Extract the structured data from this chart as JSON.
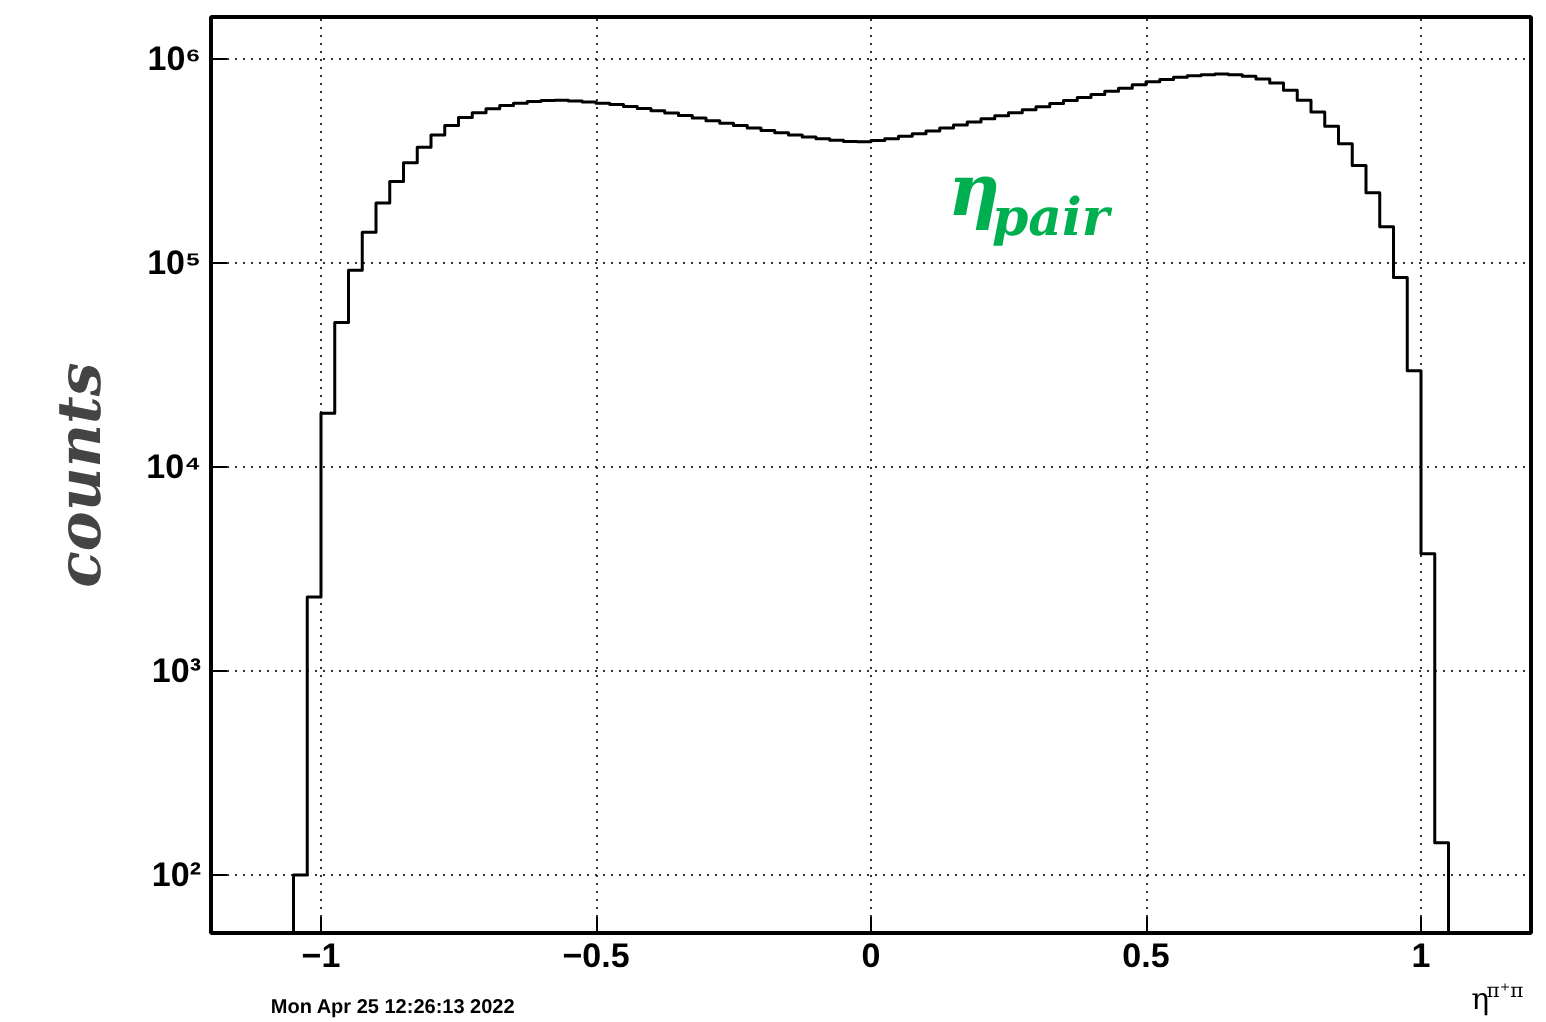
{
  "chart_data": {
    "type": "histogram",
    "xlabel": "η$^{π⁺π}$",
    "ylabel": "counts",
    "annotations": [
      "η$_{pair}$",
      "Mon Apr 25 12:26:13 2022"
    ],
    "bins": [
      -1.05,
      -1.025,
      -1.0,
      -0.975,
      -0.95,
      -0.925,
      -0.9,
      -0.875,
      -0.85,
      -0.825,
      -0.8,
      -0.775,
      -0.75,
      -0.725,
      -0.7,
      -0.675,
      -0.65,
      -0.625,
      -0.6,
      -0.575,
      -0.55,
      -0.525,
      -0.5,
      -0.475,
      -0.45,
      -0.425,
      -0.4,
      -0.375,
      -0.35,
      -0.325,
      -0.3,
      -0.275,
      -0.25,
      -0.225,
      -0.2,
      -0.175,
      -0.15,
      -0.125,
      -0.1,
      -0.075,
      -0.05,
      -0.025,
      0.0,
      0.025,
      0.05,
      0.075,
      0.1,
      0.125,
      0.15,
      0.175,
      0.2,
      0.225,
      0.25,
      0.275,
      0.3,
      0.325,
      0.35,
      0.375,
      0.4,
      0.425,
      0.45,
      0.475,
      0.5,
      0.525,
      0.55,
      0.575,
      0.6,
      0.625,
      0.65,
      0.675,
      0.7,
      0.725,
      0.75,
      0.775,
      0.8,
      0.825,
      0.85,
      0.875,
      0.9,
      0.925,
      0.95,
      0.975,
      1.0,
      1.025,
      1.05
    ],
    "values": [
      100,
      2300,
      18300,
      51000,
      92000,
      141000,
      196000,
      250000,
      309000,
      368000,
      423000,
      470000,
      515000,
      543000,
      569000,
      589000,
      605000,
      617000,
      624000,
      625000,
      621000,
      614000,
      605000,
      596000,
      583000,
      570000,
      556000,
      541000,
      526000,
      512000,
      497000,
      483000,
      470000,
      457000,
      445000,
      434000,
      423000,
      413000,
      405000,
      398000,
      393000,
      392000,
      397000,
      405000,
      417000,
      429000,
      442000,
      457000,
      473000,
      490000,
      507000,
      525000,
      543000,
      562000,
      582000,
      603000,
      624000,
      646000,
      668000,
      692000,
      716000,
      745000,
      770000,
      790000,
      810000,
      825000,
      835000,
      840000,
      835000,
      820000,
      795000,
      760000,
      700000,
      625000,
      548000,
      467000,
      383000,
      300000,
      220000,
      150000,
      84700,
      29600,
      3750,
      144
    ],
    "color": "#000000",
    "xlim": [
      -1.2,
      1.2
    ],
    "ylim": [
      52,
      1600000
    ],
    "xticks": [
      {
        "value": -1,
        "label": "−1"
      },
      {
        "value": -0.5,
        "label": "−0.5"
      },
      0,
      0.5,
      1
    ],
    "yticks": [
      {
        "value": 100,
        "label": "10²"
      },
      {
        "value": 1000,
        "label": "10³"
      },
      {
        "value": 10000,
        "label": "10⁴"
      },
      {
        "value": 100000,
        "label": "10⁵"
      },
      {
        "value": 1000000,
        "label": "10⁶"
      }
    ],
    "log": "y",
    "grid": true
  }
}
